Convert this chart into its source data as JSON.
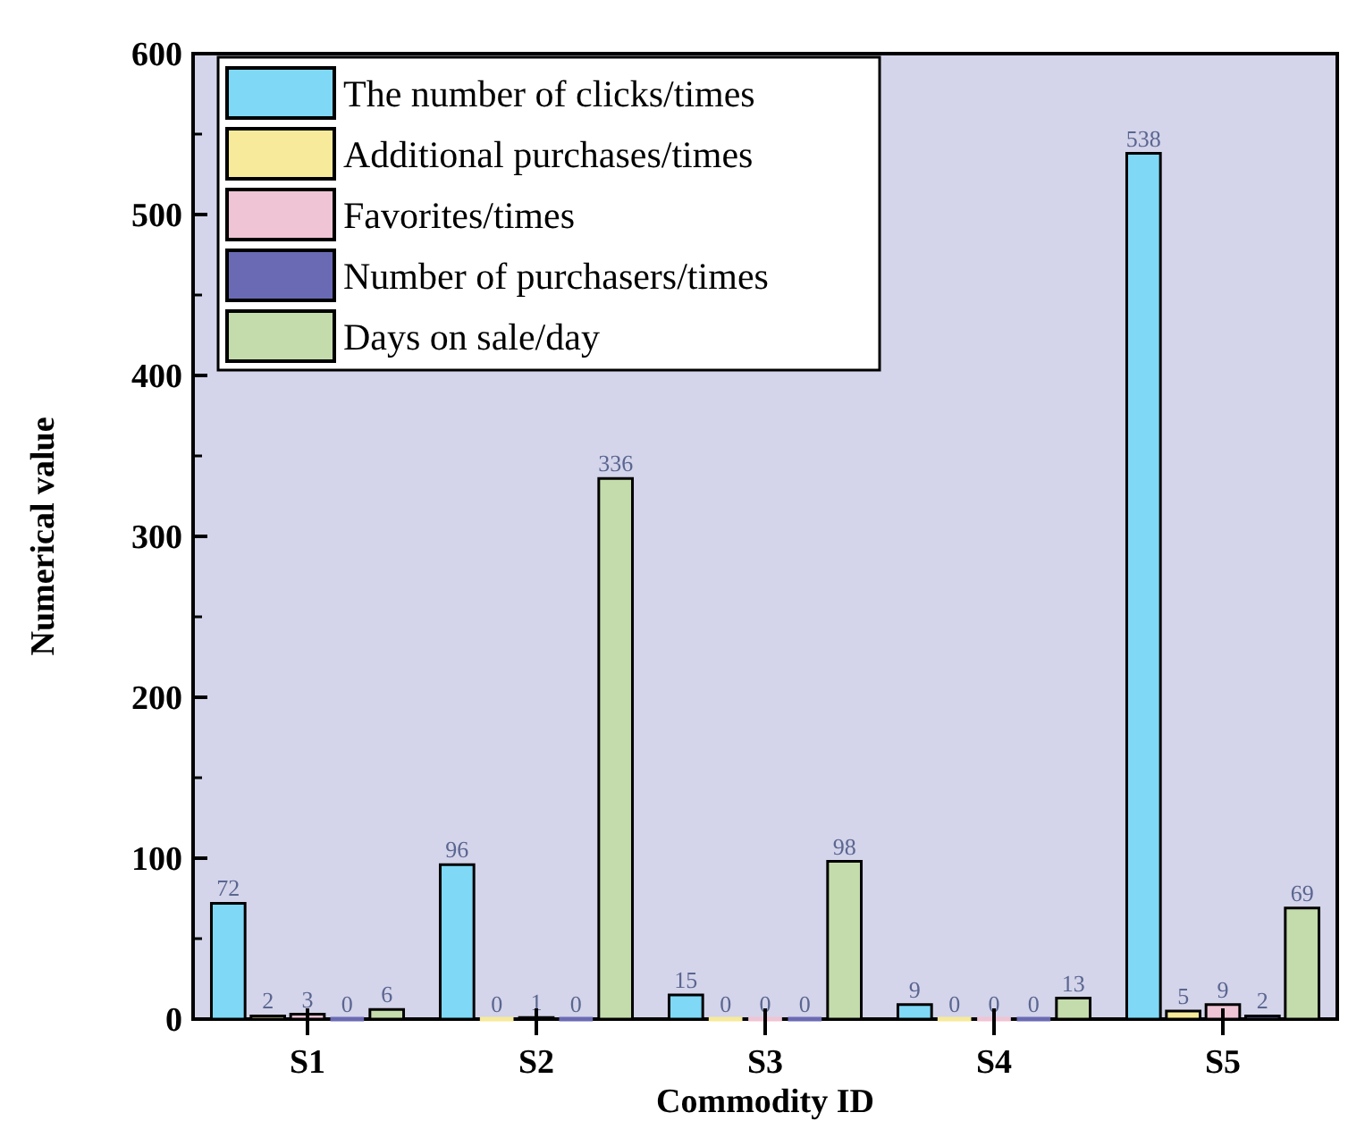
{
  "chart_data": {
    "type": "bar",
    "xlabel": "Commodity ID",
    "ylabel": "Numerical value",
    "categories": [
      "S1",
      "S2",
      "S3",
      "S4",
      "S5"
    ],
    "series": [
      {
        "name": "The number of clicks/times",
        "color": "#7fd8f6",
        "values": [
          72,
          96,
          15,
          9,
          538
        ]
      },
      {
        "name": "Additional purchases/times",
        "color": "#f7ea9a",
        "values": [
          2,
          0,
          0,
          0,
          5
        ]
      },
      {
        "name": "Favorites/times",
        "color": "#efc4d4",
        "values": [
          3,
          1,
          0,
          0,
          9
        ]
      },
      {
        "name": "Number of purchasers/times",
        "color": "#6a6ab4",
        "values": [
          0,
          0,
          0,
          0,
          2
        ]
      },
      {
        "name": "Days on sale/day",
        "color": "#c4dcac",
        "values": [
          6,
          336,
          98,
          13,
          69
        ]
      }
    ],
    "ylim": [
      0,
      600
    ],
    "yticks": [
      0,
      100,
      200,
      300,
      400,
      500,
      600
    ],
    "data_labels": true,
    "legend": "top left",
    "grid": false
  }
}
